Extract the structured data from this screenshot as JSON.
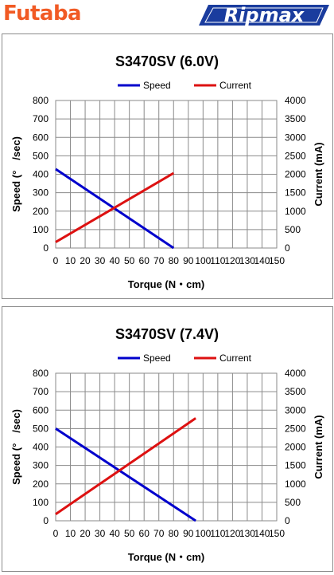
{
  "header": {
    "left_logo": "Futaba",
    "right_logo": "Ripmax",
    "left_logo_color": "#f15a24",
    "right_logo_color": "#1a3c9e"
  },
  "chart_data": [
    {
      "type": "line",
      "title": "S3470SV (6.0V)",
      "xlabel": "Torque (N・cm)",
      "ylabel": "Speed (°　/sec)",
      "y2label": "Current (mA)",
      "xlim": [
        0,
        150
      ],
      "ylim": [
        0,
        800
      ],
      "y2lim": [
        0,
        4000
      ],
      "x_ticks": [
        0,
        10,
        20,
        30,
        40,
        50,
        60,
        70,
        80,
        90,
        100,
        110,
        120,
        130,
        140,
        150
      ],
      "y_ticks": [
        0,
        100,
        200,
        300,
        400,
        500,
        600,
        700,
        800
      ],
      "y2_ticks": [
        0,
        500,
        1000,
        1500,
        2000,
        2500,
        3000,
        3500,
        4000
      ],
      "grid": true,
      "legend": "top",
      "series": [
        {
          "name": "Speed",
          "color": "#0000cc",
          "axis": "left",
          "x": [
            0,
            80
          ],
          "y": [
            428,
            0
          ]
        },
        {
          "name": "Current",
          "color": "#dd1111",
          "axis": "right",
          "x": [
            0,
            80
          ],
          "y": [
            160,
            2030
          ]
        }
      ]
    },
    {
      "type": "line",
      "title": "S3470SV (7.4V)",
      "xlabel": "Torque (N・cm)",
      "ylabel": "Speed (°　/sec)",
      "y2label": "Current (mA)",
      "xlim": [
        0,
        150
      ],
      "ylim": [
        0,
        800
      ],
      "y2lim": [
        0,
        4000
      ],
      "x_ticks": [
        0,
        10,
        20,
        30,
        40,
        50,
        60,
        70,
        80,
        90,
        100,
        110,
        120,
        130,
        140,
        150
      ],
      "y_ticks": [
        0,
        100,
        200,
        300,
        400,
        500,
        600,
        700,
        800
      ],
      "y2_ticks": [
        0,
        500,
        1000,
        1500,
        2000,
        2500,
        3000,
        3500,
        4000
      ],
      "grid": true,
      "legend": "top",
      "series": [
        {
          "name": "Speed",
          "color": "#0000cc",
          "axis": "left",
          "x": [
            0,
            95
          ],
          "y": [
            500,
            0
          ]
        },
        {
          "name": "Current",
          "color": "#dd1111",
          "axis": "right",
          "x": [
            0,
            95
          ],
          "y": [
            180,
            2780
          ]
        }
      ]
    }
  ]
}
